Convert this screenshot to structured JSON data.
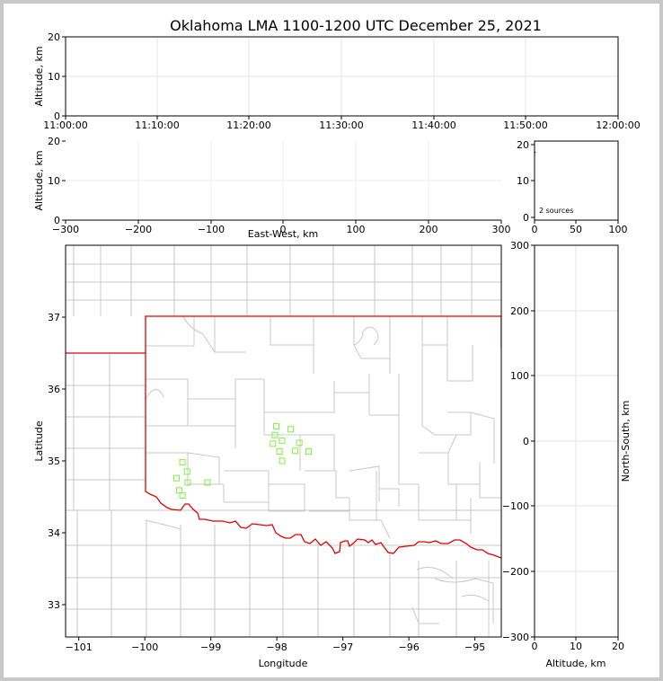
{
  "chart_data": {
    "type": "scatter",
    "title": "Oklahoma LMA 1100-1200 UTC December 25, 2021",
    "panels": {
      "time_altitude": {
        "ylabel": "Altitude, km",
        "xlim": [
          "11:00:00",
          "12:00:00"
        ],
        "x_ticks": [
          "11:00:00",
          "11:10:00",
          "11:20:00",
          "11:30:00",
          "11:40:00",
          "11:50:00",
          "12:00:00"
        ],
        "ylim": [
          0,
          20
        ],
        "y_ticks": [
          "0",
          "10",
          "20"
        ],
        "grid": true
      },
      "ew_altitude": {
        "xlabel": "East-West, km",
        "ylabel": "Altitude, km",
        "xlim": [
          -300,
          300
        ],
        "x_ticks": [
          "−300",
          "−200",
          "−100",
          "0",
          "100",
          "200",
          "300"
        ],
        "ylim": [
          0,
          20
        ],
        "y_ticks": [
          "0",
          "10",
          "20"
        ],
        "grid": true
      },
      "histogram": {
        "annotation": "2 sources",
        "xlim": [
          0,
          100
        ],
        "x_ticks": [
          "0",
          "50",
          "100"
        ],
        "ylim": [
          0,
          20
        ],
        "y_ticks": [
          "0",
          "10",
          "20"
        ],
        "grid": false
      },
      "plan_view": {
        "xlabel": "Longitude",
        "ylabel": "Latitude",
        "xlim": [
          -101.2,
          -94.6
        ],
        "x_ticks": [
          {
            "value": -101,
            "label": "−101"
          },
          {
            "value": -100,
            "label": "−100"
          },
          {
            "value": -99,
            "label": "−99"
          },
          {
            "value": -98,
            "label": "−98"
          },
          {
            "value": -97,
            "label": "−97"
          },
          {
            "value": -96,
            "label": "−96"
          },
          {
            "value": -95,
            "label": "−95"
          }
        ],
        "ylim": [
          32.55,
          38.0
        ],
        "y_ticks": [
          {
            "value": 33,
            "label": "33"
          },
          {
            "value": 34,
            "label": "34"
          },
          {
            "value": 35,
            "label": "35"
          },
          {
            "value": 36,
            "label": "36"
          },
          {
            "value": 37,
            "label": "37"
          }
        ],
        "state_border_color": "#e00000",
        "county_line_color": "#c8c8c8",
        "station_color": "#80f040",
        "stations": [
          {
            "lon": -99.43,
            "lat": 34.98
          },
          {
            "lon": -99.36,
            "lat": 34.85
          },
          {
            "lon": -99.52,
            "lat": 34.76
          },
          {
            "lon": -99.35,
            "lat": 34.7
          },
          {
            "lon": -99.05,
            "lat": 34.7
          },
          {
            "lon": -99.48,
            "lat": 34.59
          },
          {
            "lon": -99.43,
            "lat": 34.52
          },
          {
            "lon": -98.01,
            "lat": 35.48
          },
          {
            "lon": -97.79,
            "lat": 35.44
          },
          {
            "lon": -98.03,
            "lat": 35.36
          },
          {
            "lon": -97.92,
            "lat": 35.28
          },
          {
            "lon": -98.06,
            "lat": 35.24
          },
          {
            "lon": -97.66,
            "lat": 35.25
          },
          {
            "lon": -97.96,
            "lat": 35.13
          },
          {
            "lon": -97.72,
            "lat": 35.14
          },
          {
            "lon": -97.52,
            "lat": 35.13
          },
          {
            "lon": -97.92,
            "lat": 35.0
          }
        ]
      },
      "ns_altitude": {
        "xlabel": "Altitude, km",
        "ylabel": "North-South, km",
        "xlim": [
          0,
          20
        ],
        "x_ticks": [
          "0",
          "10",
          "20"
        ],
        "ylim": [
          -300,
          300
        ],
        "y_ticks": [
          "300",
          "200",
          "100",
          "0",
          "−100",
          "−200",
          "−300"
        ],
        "grid": true
      }
    }
  }
}
